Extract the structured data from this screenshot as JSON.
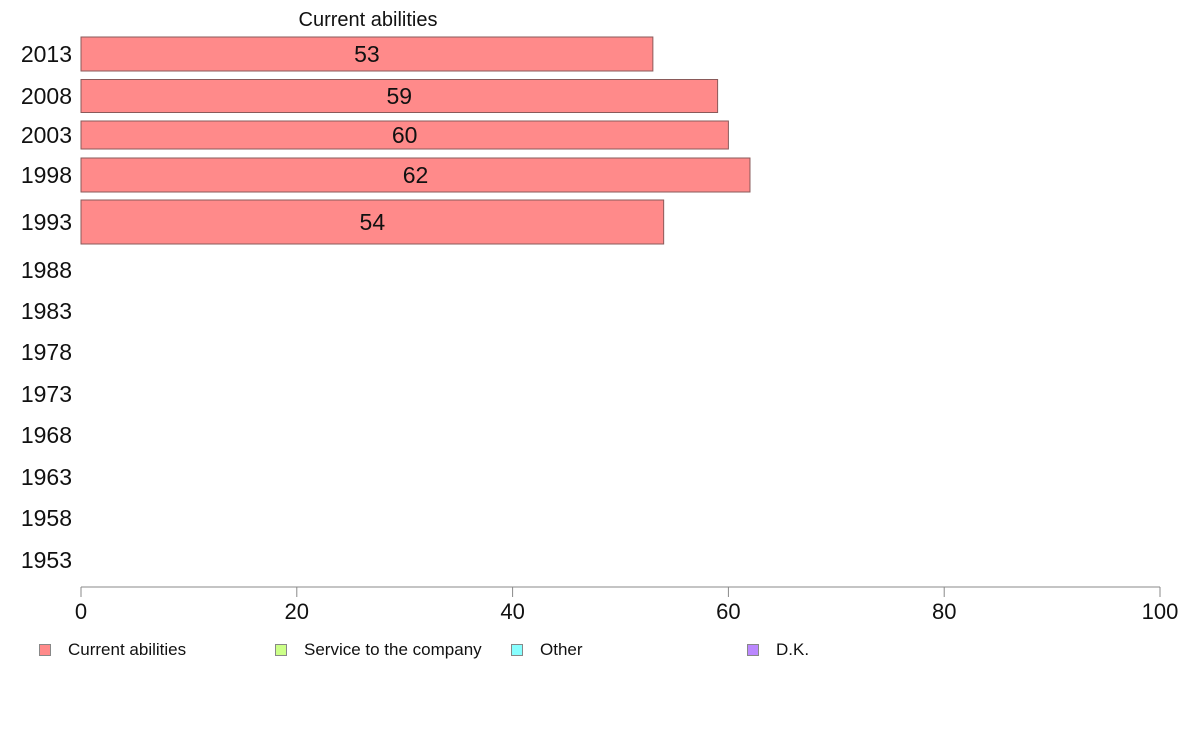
{
  "chart_data": {
    "type": "bar",
    "orientation": "horizontal",
    "title": "",
    "xlabel": "",
    "ylabel": "",
    "xlim": [
      0,
      100
    ],
    "x_ticks": [
      0,
      20,
      40,
      60,
      80,
      100
    ],
    "grid": false,
    "legend_position": "bottom",
    "categories": [
      "2013",
      "2008",
      "2003",
      "1998",
      "1993",
      "1988",
      "1983",
      "1978",
      "1973",
      "1968",
      "1963",
      "1958",
      "1953"
    ],
    "series": [
      {
        "name": "Current abilities",
        "color": "#ff8a8a",
        "values": [
          53,
          59,
          60,
          62,
          54,
          null,
          null,
          null,
          null,
          null,
          null,
          null,
          null
        ]
      },
      {
        "name": "Service to the company",
        "color": "#ccff88",
        "values": [
          null,
          null,
          null,
          null,
          null,
          null,
          null,
          null,
          null,
          null,
          null,
          null,
          null
        ]
      },
      {
        "name": "Other",
        "color": "#88ffff",
        "values": [
          null,
          null,
          null,
          null,
          null,
          null,
          null,
          null,
          null,
          null,
          null,
          null,
          null
        ]
      },
      {
        "name": "D.K.",
        "color": "#bb88ff",
        "values": [
          null,
          null,
          null,
          null,
          null,
          null,
          null,
          null,
          null,
          null,
          null,
          null,
          null
        ]
      }
    ],
    "column_header": "Current abilities"
  }
}
